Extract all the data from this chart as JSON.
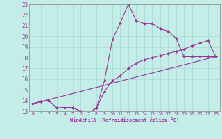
{
  "xlabel": "Windchill (Refroidissement éolien,°C)",
  "bg_color": "#c5ede8",
  "grid_color": "#a8d8d4",
  "line_color": "#993399",
  "xlim": [
    -0.5,
    23.5
  ],
  "ylim": [
    13,
    23
  ],
  "xticks": [
    0,
    1,
    2,
    3,
    4,
    5,
    6,
    7,
    8,
    9,
    10,
    11,
    12,
    13,
    14,
    15,
    16,
    17,
    18,
    19,
    20,
    21,
    22,
    23
  ],
  "yticks": [
    13,
    14,
    15,
    16,
    17,
    18,
    19,
    20,
    21,
    22,
    23
  ],
  "curve1_x": [
    0,
    1,
    2,
    3,
    4,
    5,
    6,
    7,
    8,
    9,
    10,
    11,
    12,
    13,
    14,
    15,
    16,
    17,
    18,
    19,
    20,
    21,
    22,
    23
  ],
  "curve1_y": [
    13.7,
    13.9,
    14.0,
    13.3,
    13.35,
    13.35,
    13.0,
    12.85,
    13.3,
    15.85,
    19.7,
    21.25,
    23.0,
    21.45,
    21.2,
    21.2,
    20.7,
    20.5,
    19.8,
    18.1,
    18.1,
    18.1,
    18.1,
    18.1
  ],
  "curve2_x": [
    0,
    1,
    2,
    3,
    4,
    5,
    6,
    7,
    8,
    9,
    10,
    11,
    12,
    13,
    14,
    15,
    16,
    17,
    18,
    19,
    20,
    21,
    22,
    23
  ],
  "curve2_y": [
    13.7,
    13.9,
    14.0,
    13.3,
    13.35,
    13.35,
    13.0,
    12.85,
    13.3,
    14.85,
    15.85,
    16.3,
    17.0,
    17.5,
    17.8,
    18.0,
    18.2,
    18.4,
    18.6,
    18.8,
    19.1,
    19.35,
    19.6,
    18.1
  ],
  "curve3_x": [
    0,
    23
  ],
  "curve3_y": [
    13.7,
    18.1
  ]
}
